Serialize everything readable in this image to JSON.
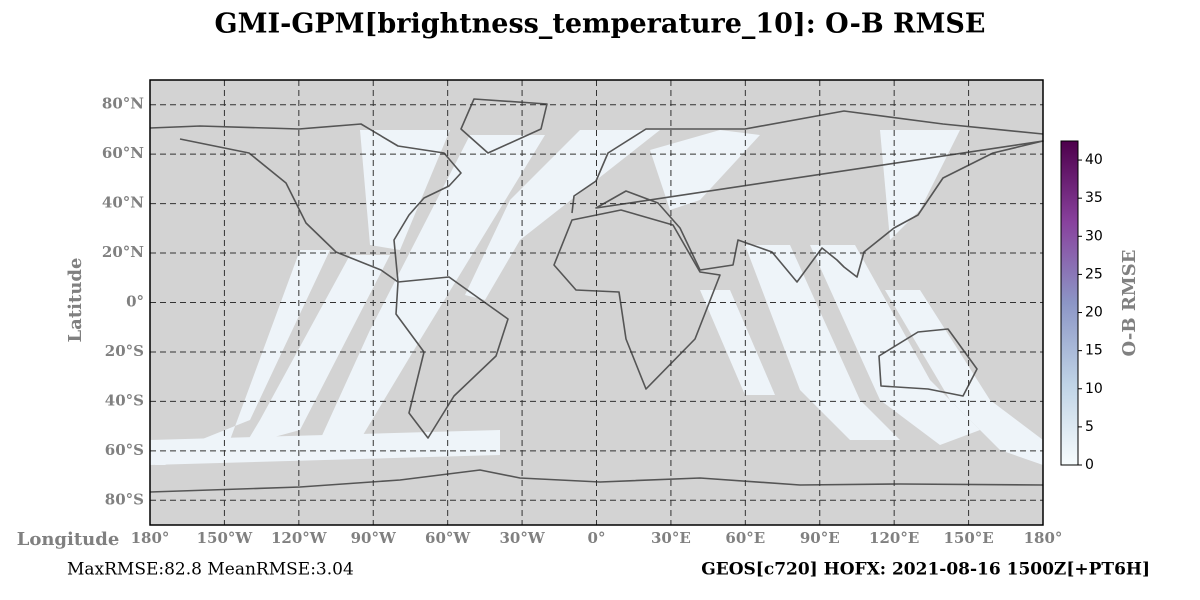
{
  "chart_data": {
    "type": "map",
    "title": "GMI-GPM[brightness_temperature_10]: O-B RMSE",
    "x_label": "Longitude",
    "y_label": "Latitude",
    "xlim": [
      -180,
      180
    ],
    "ylim": [
      -90,
      90
    ],
    "xticks": [
      {
        "value": -180,
        "label": "180°"
      },
      {
        "value": -150,
        "label": "150°W"
      },
      {
        "value": -120,
        "label": "120°W"
      },
      {
        "value": -90,
        "label": "90°W"
      },
      {
        "value": -60,
        "label": "60°W"
      },
      {
        "value": -30,
        "label": "30°W"
      },
      {
        "value": 0,
        "label": "0°"
      },
      {
        "value": 30,
        "label": "30°E"
      },
      {
        "value": 60,
        "label": "60°E"
      },
      {
        "value": 90,
        "label": "90°E"
      },
      {
        "value": 120,
        "label": "120°E"
      },
      {
        "value": 150,
        "label": "150°E"
      },
      {
        "value": 180,
        "label": "180°"
      }
    ],
    "yticks": [
      {
        "value": 80,
        "label": "80°N"
      },
      {
        "value": 60,
        "label": "60°N"
      },
      {
        "value": 40,
        "label": "40°N"
      },
      {
        "value": 20,
        "label": "20°N"
      },
      {
        "value": 0,
        "label": "0°"
      },
      {
        "value": -20,
        "label": "20°S"
      },
      {
        "value": -40,
        "label": "40°S"
      },
      {
        "value": -60,
        "label": "60°S"
      },
      {
        "value": -80,
        "label": "80°S"
      }
    ],
    "grid": true,
    "colorbar_label": "O-B RMSE",
    "clim": [
      0,
      42.5
    ],
    "cticks": [
      0,
      5,
      10,
      15,
      20,
      25,
      30,
      35,
      40
    ],
    "colormap": [
      "#f7fcfd",
      "#bfd3e6",
      "#8c96c6",
      "#88419d",
      "#4d004b"
    ],
    "stats": "MaxRMSE:82.8 MeanRMSE:3.04",
    "footer": "GEOS[c720] HOFX: 2021-08-16 1500Z[+PT6H]"
  }
}
